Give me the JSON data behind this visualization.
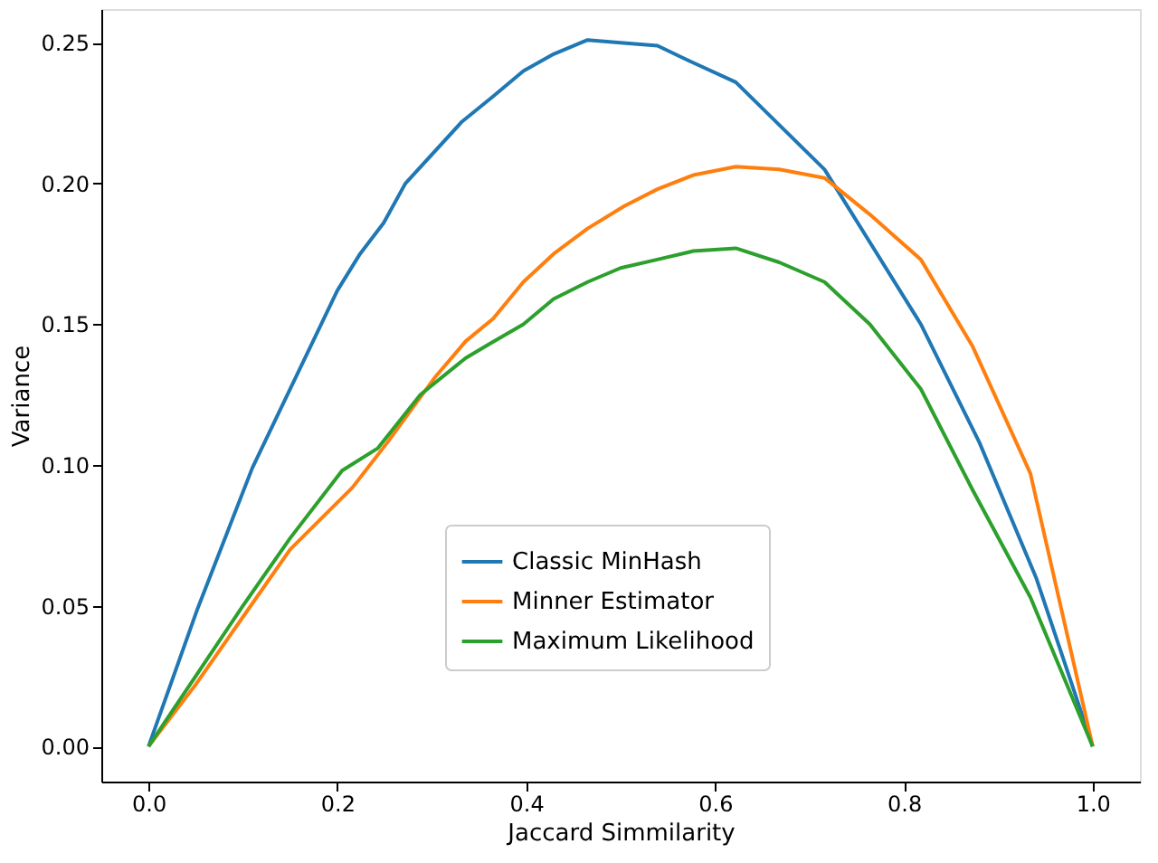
{
  "chart_data": {
    "type": "line",
    "xlabel": "Jaccard Simmilarity",
    "ylabel": "Variance",
    "xlim": [
      -0.05,
      1.05
    ],
    "ylim": [
      -0.0125,
      0.262
    ],
    "xticks": [
      {
        "value": 0,
        "label": "0.0"
      },
      {
        "value": 0.2,
        "label": "0.2"
      },
      {
        "value": 0.4,
        "label": "0.4"
      },
      {
        "value": 0.6,
        "label": "0.6"
      },
      {
        "value": 0.8,
        "label": "0.8"
      },
      {
        "value": 1,
        "label": "1.0"
      }
    ],
    "yticks": [
      {
        "value": 0,
        "label": "0.00"
      },
      {
        "value": 0.05,
        "label": "0.05"
      },
      {
        "value": 0.1,
        "label": "0.10"
      },
      {
        "value": 0.15,
        "label": "0.15"
      },
      {
        "value": 0.2,
        "label": "0.20"
      },
      {
        "value": 0.25,
        "label": "0.25"
      }
    ],
    "grid": false,
    "legend": "bottom",
    "line_style": "solid",
    "marker": "none",
    "series": [
      {
        "name": "Classic MinHash",
        "color": "#1f77b4",
        "x": [
          0,
          0.052,
          0.11,
          0.2,
          0.224,
          0.249,
          0.272,
          0.332,
          0.365,
          0.397,
          0.429,
          0.465,
          0.5,
          0.539,
          0.57,
          0.622,
          0.716,
          0.818,
          0.88,
          0.94,
          1.0
        ],
        "values": [
          0,
          0.049,
          0.099,
          0.162,
          0.175,
          0.186,
          0.2,
          0.222,
          0.231,
          0.24,
          0.246,
          0.251,
          0.25,
          0.249,
          0.244,
          0.236,
          0.205,
          0.15,
          0.108,
          0.06,
          0
        ]
      },
      {
        "name": "Minner Estimator",
        "color": "#ff7f0e",
        "x": [
          0,
          0.05,
          0.1,
          0.15,
          0.216,
          0.253,
          0.303,
          0.336,
          0.365,
          0.397,
          0.429,
          0.465,
          0.504,
          0.539,
          0.577,
          0.622,
          0.668,
          0.716,
          0.764,
          0.818,
          0.873,
          0.934,
          1.0
        ],
        "values": [
          0,
          0.022,
          0.046,
          0.07,
          0.092,
          0.108,
          0.131,
          0.144,
          0.152,
          0.165,
          0.175,
          0.184,
          0.192,
          0.198,
          0.203,
          0.206,
          0.205,
          0.202,
          0.189,
          0.173,
          0.142,
          0.097,
          0
        ]
      },
      {
        "name": "Maximum Likelihood",
        "color": "#2ca02c",
        "x": [
          0,
          0.05,
          0.1,
          0.15,
          0.205,
          0.243,
          0.288,
          0.336,
          0.361,
          0.397,
          0.429,
          0.465,
          0.5,
          0.539,
          0.577,
          0.622,
          0.668,
          0.716,
          0.764,
          0.818,
          0.873,
          0.934,
          1.0
        ],
        "values": [
          0,
          0.025,
          0.05,
          0.074,
          0.098,
          0.106,
          0.125,
          0.138,
          0.143,
          0.15,
          0.159,
          0.165,
          0.17,
          0.173,
          0.176,
          0.177,
          0.172,
          0.165,
          0.15,
          0.127,
          0.091,
          0.053,
          0
        ]
      }
    ]
  }
}
